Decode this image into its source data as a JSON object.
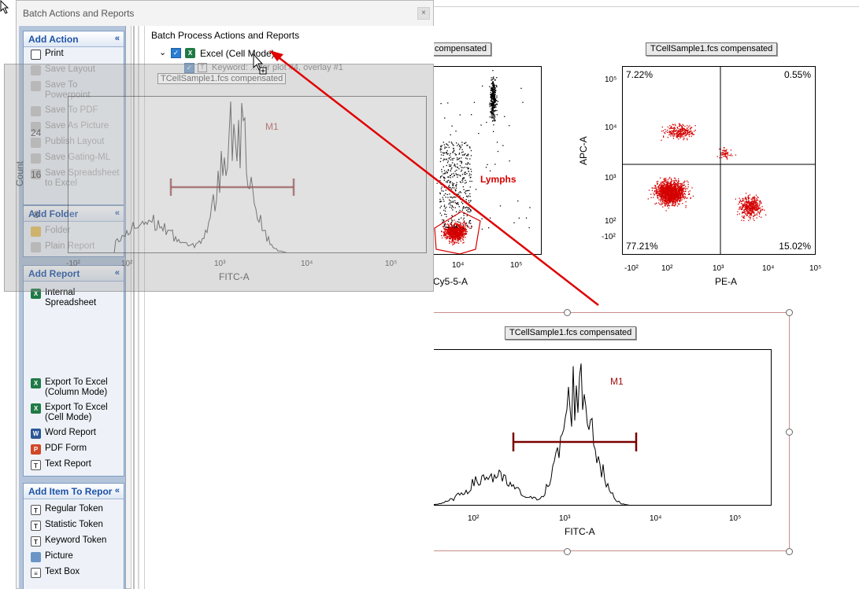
{
  "dialog": {
    "title": "Batch Actions and Reports",
    "close_glyph": "×"
  },
  "sidebar": {
    "add_action": {
      "header": "Add Action",
      "items": [
        {
          "label": "Print",
          "enabled": true,
          "icon": "printer-icon"
        },
        {
          "label": "Save Layout",
          "enabled": false,
          "icon": "save-layout-icon"
        },
        {
          "label": "Save To Powerpoint",
          "enabled": false,
          "icon": "powerpoint-icon"
        },
        {
          "label": "Save To PDF",
          "enabled": false,
          "icon": "pdf-icon"
        },
        {
          "label": "Save As Picture",
          "enabled": false,
          "icon": "picture-icon"
        },
        {
          "label": "Publish Layout",
          "enabled": false,
          "icon": "publish-icon"
        },
        {
          "label": "Save Gating-ML",
          "enabled": false,
          "icon": "gating-ml-icon"
        },
        {
          "label": "Save Spreadsheet to Excel",
          "enabled": false,
          "icon": "excel-icon"
        }
      ]
    },
    "add_folder": {
      "header": "Add Folder",
      "items": [
        {
          "label": "Folder",
          "enabled": false,
          "icon": "folder-icon"
        },
        {
          "label": "Plain Report",
          "enabled": false,
          "icon": "plain-report-icon"
        }
      ]
    },
    "add_report": {
      "header": "Add Report",
      "items": [
        {
          "label": "Internal Spreadsheet",
          "enabled": true,
          "icon": "excel-icon"
        },
        {
          "label": "Export To Excel (Column Mode)",
          "enabled": true,
          "icon": "excel-icon"
        },
        {
          "label": "Export To Excel (Cell Mode)",
          "enabled": true,
          "icon": "excel-icon"
        },
        {
          "label": "Word Report",
          "enabled": true,
          "icon": "word-icon"
        },
        {
          "label": "PDF Form",
          "enabled": true,
          "icon": "pdf-icon"
        },
        {
          "label": "Text Report",
          "enabled": true,
          "icon": "text-report-icon"
        }
      ]
    },
    "add_item": {
      "header": "Add Item To Repor",
      "items": [
        {
          "label": "Regular Token",
          "enabled": true,
          "icon": "token-icon"
        },
        {
          "label": "Statistic Token",
          "enabled": true,
          "icon": "token-icon"
        },
        {
          "label": "Keyword Token",
          "enabled": true,
          "icon": "token-icon"
        },
        {
          "label": "Picture",
          "enabled": true,
          "icon": "picture-icon"
        },
        {
          "label": "Text Box",
          "enabled": true,
          "icon": "text-box-icon"
        }
      ]
    },
    "collapse_glyph": "«"
  },
  "panel": {
    "heading": "Batch Process Actions and Reports",
    "tree": [
      {
        "label": "Excel (Cell Mode)",
        "checked": true,
        "expanded": true,
        "icon": "excel-icon"
      },
      {
        "label": "Keyword: ... for plot #4, overlay #1",
        "checked": true,
        "icon": "keyword-token-icon"
      }
    ]
  },
  "drag_preview": {
    "label": "TCellSample1.fcs compensated",
    "gate_label": "M1",
    "y_axis": "Count",
    "x_axis": "FITC-A",
    "y_ticks": [
      "24",
      "16",
      "8"
    ],
    "x_ticks": [
      "-10²",
      "10²",
      "10³",
      "10⁴",
      "10⁵"
    ]
  },
  "plots": {
    "left_partial": {
      "title": "compensated",
      "gate_label": "Lymphs",
      "x_axis": "Cy5-5-A",
      "x_ticks": [
        "10⁴",
        "10⁵"
      ]
    },
    "quadrant": {
      "title": "TCellSample1.fcs compensated",
      "x_axis": "PE-A",
      "y_axis": "APC-A",
      "quadrants": {
        "top_left": "7.22%",
        "top_right": "0.55%",
        "bottom_left": "77.21%",
        "bottom_right": "15.02%"
      },
      "x_ticks": [
        "-10²",
        "10²",
        "10³",
        "10⁴",
        "10⁵"
      ],
      "y_ticks": [
        "10⁵",
        "10⁴",
        "10³",
        "10²",
        "-10²"
      ]
    },
    "histogram": {
      "title": "TCellSample1.fcs compensated",
      "gate_label": "M1",
      "x_axis": "FITC-A",
      "x_ticks": [
        "10²",
        "10³",
        "10⁴",
        "10⁵"
      ]
    }
  },
  "colors": {
    "sidebar_bg": "#b4c4da",
    "group_header_text": "#1d52a5",
    "gate_red": "#d40000",
    "marker_dark_red": "#7a0000",
    "drag_arrow": "#e00000"
  }
}
